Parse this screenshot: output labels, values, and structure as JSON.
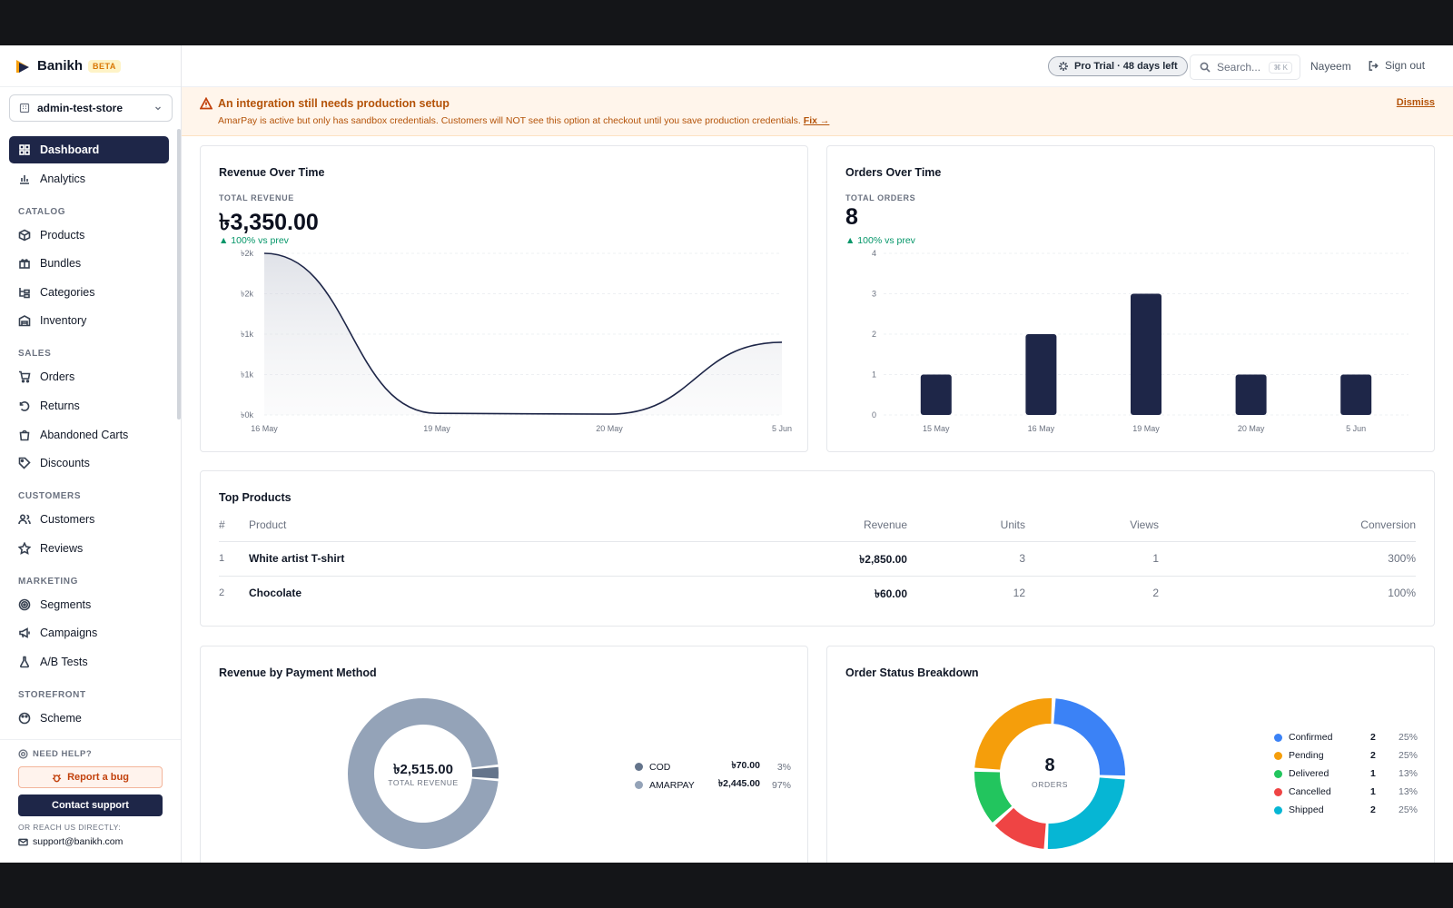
{
  "app": {
    "name": "Banikh",
    "badge": "BETA"
  },
  "store_select": {
    "value": "admin-test-store"
  },
  "sidebar": {
    "items": [
      {
        "type": "item",
        "label": "Dashboard",
        "icon": "grid-icon",
        "active": true
      },
      {
        "type": "item",
        "label": "Analytics",
        "icon": "bar-chart-icon"
      },
      {
        "type": "section",
        "label": "CATALOG"
      },
      {
        "type": "item",
        "label": "Products",
        "icon": "box-icon"
      },
      {
        "type": "item",
        "label": "Bundles",
        "icon": "gift-icon"
      },
      {
        "type": "item",
        "label": "Categories",
        "icon": "folder-tree-icon"
      },
      {
        "type": "item",
        "label": "Inventory",
        "icon": "warehouse-icon"
      },
      {
        "type": "section",
        "label": "SALES"
      },
      {
        "type": "item",
        "label": "Orders",
        "icon": "cart-icon"
      },
      {
        "type": "item",
        "label": "Returns",
        "icon": "return-icon"
      },
      {
        "type": "item",
        "label": "Abandoned Carts",
        "icon": "bag-icon"
      },
      {
        "type": "item",
        "label": "Discounts",
        "icon": "tag-icon"
      },
      {
        "type": "section",
        "label": "CUSTOMERS"
      },
      {
        "type": "item",
        "label": "Customers",
        "icon": "users-icon"
      },
      {
        "type": "item",
        "label": "Reviews",
        "icon": "star-icon"
      },
      {
        "type": "section",
        "label": "MARKETING"
      },
      {
        "type": "item",
        "label": "Segments",
        "icon": "target-icon"
      },
      {
        "type": "item",
        "label": "Campaigns",
        "icon": "megaphone-icon"
      },
      {
        "type": "item",
        "label": "A/B Tests",
        "icon": "flask-icon"
      },
      {
        "type": "section",
        "label": "STOREFRONT"
      },
      {
        "type": "item",
        "label": "Scheme",
        "icon": "palette-icon"
      }
    ]
  },
  "help": {
    "title": "NEED HELP?",
    "report_bug": "Report a bug",
    "contact_support": "Contact support",
    "reach": "OR REACH US DIRECTLY:",
    "email": "support@banikh.com"
  },
  "header": {
    "trial": "Pro Trial · 48 days left",
    "search_placeholder": "Search...",
    "search_shortcut": "⌘ K",
    "user": "Nayeem",
    "sign_out": "Sign out"
  },
  "alert": {
    "title": "An integration still needs production setup",
    "text": "AmarPay is active but only has sandbox credentials. Customers will NOT see this option at checkout until you save production credentials.",
    "fix": "Fix →",
    "dismiss": "Dismiss"
  },
  "revenue_card": {
    "title": "Revenue Over Time",
    "kpi_label": "TOTAL REVENUE",
    "kpi_value": "৳3,350.00",
    "delta": "▲ 100% vs prev"
  },
  "orders_card": {
    "title": "Orders Over Time",
    "kpi_label": "TOTAL ORDERS",
    "kpi_value": "8",
    "delta": "▲ 100% vs prev"
  },
  "top_products": {
    "title": "Top Products",
    "columns": [
      "#",
      "Product",
      "Revenue",
      "Units",
      "Views",
      "Conversion"
    ],
    "rows": [
      {
        "rank": "1",
        "product": "White artist T-shirt",
        "revenue": "৳2,850.00",
        "units": "3",
        "views": "1",
        "conversion": "300%"
      },
      {
        "rank": "2",
        "product": "Chocolate",
        "revenue": "৳60.00",
        "units": "12",
        "views": "2",
        "conversion": "100%"
      }
    ]
  },
  "payment_card": {
    "title": "Revenue by Payment Method",
    "center_value": "৳2,515.00",
    "center_label": "TOTAL REVENUE"
  },
  "status_card": {
    "title": "Order Status Breakdown",
    "center_value": "8",
    "center_label": "ORDERS"
  },
  "colors": {
    "navy": "#1e2648",
    "accent_green": "#059669",
    "warning": "#b45309"
  },
  "chart_data": [
    {
      "type": "area",
      "title": "Revenue Over Time",
      "x": [
        "16 May",
        "19 May",
        "20 May",
        "5 Jun"
      ],
      "y": [
        2000,
        20,
        10,
        900
      ],
      "ylim": [
        0,
        2000
      ],
      "yticks": [
        "৳2k",
        "৳2k",
        "৳1k",
        "৳1k",
        "৳0k"
      ],
      "grid": true
    },
    {
      "type": "bar",
      "title": "Orders Over Time",
      "categories": [
        "15 May",
        "16 May",
        "19 May",
        "20 May",
        "5 Jun"
      ],
      "values": [
        1,
        2,
        3,
        1,
        1
      ],
      "ylim": [
        0,
        4
      ],
      "yticks": [
        "4",
        "3",
        "2",
        "1",
        "0"
      ],
      "grid": true
    },
    {
      "type": "pie",
      "title": "Revenue by Payment Method",
      "slices": [
        {
          "label": "COD",
          "amount": "৳70.00",
          "pct": "3%",
          "value": 3,
          "color": "#64748b"
        },
        {
          "label": "AMARPAY",
          "amount": "৳2,445.00",
          "pct": "97%",
          "value": 97,
          "color": "#94a3b8"
        }
      ]
    },
    {
      "type": "pie",
      "title": "Order Status Breakdown",
      "slices": [
        {
          "label": "Confirmed",
          "count": "2",
          "pct": "25%",
          "value": 2,
          "color": "#3b82f6"
        },
        {
          "label": "Shipped",
          "count": "2",
          "pct": "25%",
          "value": 2,
          "color": "#06b6d4"
        },
        {
          "label": "Cancelled",
          "count": "1",
          "pct": "13%",
          "value": 1,
          "color": "#ef4444"
        },
        {
          "label": "Delivered",
          "count": "1",
          "pct": "13%",
          "value": 1,
          "color": "#22c55e"
        },
        {
          "label": "Pending",
          "count": "2",
          "pct": "25%",
          "value": 2,
          "color": "#f59e0b"
        }
      ],
      "legend_order": [
        "Confirmed",
        "Pending",
        "Delivered",
        "Cancelled",
        "Shipped"
      ]
    }
  ]
}
